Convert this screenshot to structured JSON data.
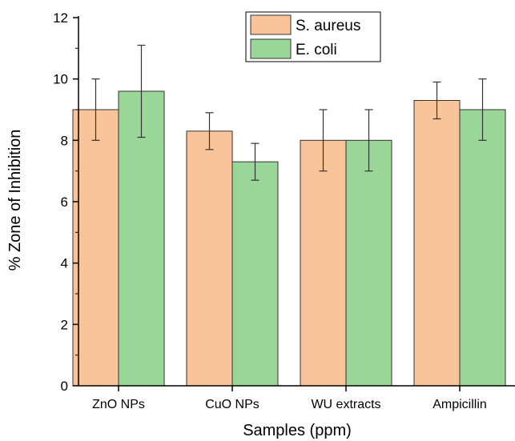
{
  "chart_data": {
    "type": "bar",
    "title": "",
    "xlabel": "Samples (ppm)",
    "ylabel": "% Zone of Inhibition",
    "categories": [
      "ZnO NPs",
      "CuO NPs",
      "WU extracts",
      "Ampicillin"
    ],
    "ylim": [
      0,
      12
    ],
    "y_ticks": [
      "0",
      "2",
      "4",
      "6",
      "8",
      "10",
      "12"
    ],
    "grid": false,
    "legend_position": "top-center",
    "series": [
      {
        "name": "S. aureus",
        "color": "#F9C499",
        "values": [
          9.0,
          8.3,
          8.0,
          9.3
        ],
        "errors": [
          1.0,
          0.6,
          1.0,
          0.6
        ]
      },
      {
        "name": "E. coli",
        "color": "#9AD698",
        "values": [
          9.6,
          7.3,
          8.0,
          9.0
        ],
        "errors": [
          1.5,
          0.6,
          1.0,
          1.0
        ]
      }
    ]
  }
}
